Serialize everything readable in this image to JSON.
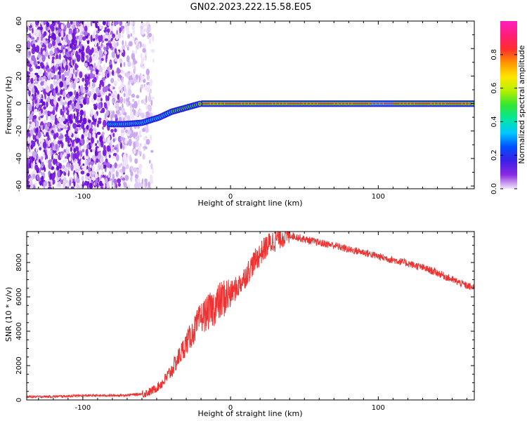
{
  "figure_title": "GN02.2023.222.15.58.E05",
  "chart_data": [
    {
      "type": "heatmap",
      "xlabel": "Height of straight line (km)",
      "ylabel": "Frequency (Hz)",
      "xlim": [
        -138,
        165
      ],
      "ylim": [
        -62,
        60
      ],
      "x_ticks": [
        -100,
        0,
        100
      ],
      "y_ticks": [
        -60,
        -40,
        -20,
        0,
        20,
        40,
        60
      ],
      "colorbar": {
        "label": "Normalized spectral amplitude",
        "range": [
          0,
          1
        ],
        "ticks": [
          "0.0",
          "0.2",
          "0.4",
          "0.6",
          "0.8"
        ],
        "colors": [
          "#f2e6fb",
          "#8a2be2",
          "#3c1ee6",
          "#0050ff",
          "#00c8ff",
          "#00e6a0",
          "#32e632",
          "#b4f000",
          "#ffe600",
          "#ff9600",
          "#ff2d2d",
          "#ff1e78",
          "#ff1ebe"
        ]
      },
      "ridge": {
        "description_points": [
          {
            "x": -82,
            "y": -15
          },
          {
            "x": -72,
            "y": -15
          },
          {
            "x": -60,
            "y": -14
          },
          {
            "x": -48,
            "y": -10
          },
          {
            "x": -40,
            "y": -6
          },
          {
            "x": -30,
            "y": -3
          },
          {
            "x": -20,
            "y": 0
          },
          {
            "x": 0,
            "y": 0
          },
          {
            "x": 100,
            "y": 0
          },
          {
            "x": 165,
            "y": 0
          }
        ]
      }
    },
    {
      "type": "line",
      "xlabel": "Height of straight line (km)",
      "ylabel": "SNR (10 * v/v)",
      "xlim": [
        -138,
        165
      ],
      "ylim": [
        0,
        9800
      ],
      "x_ticks": [
        -100,
        0,
        100
      ],
      "y_ticks": [
        0,
        2000,
        4000,
        6000,
        8000
      ],
      "series": [
        {
          "color": "#ee3333",
          "x": [
            -138,
            -120,
            -100,
            -80,
            -70,
            -60,
            -55,
            -50,
            -45,
            -40,
            -35,
            -30,
            -25,
            -20,
            -15,
            -10,
            -5,
            0,
            5,
            10,
            15,
            20,
            25,
            30,
            35,
            40,
            50,
            60,
            70,
            80,
            90,
            100,
            110,
            120,
            130,
            140,
            150,
            160,
            165
          ],
          "y": [
            180,
            200,
            250,
            260,
            280,
            350,
            450,
            700,
            1100,
            1700,
            2500,
            3300,
            4000,
            4800,
            5100,
            5500,
            5900,
            6200,
            6600,
            7200,
            7900,
            8500,
            9000,
            9300,
            9550,
            9600,
            9350,
            9150,
            9000,
            8750,
            8600,
            8350,
            8150,
            7950,
            7700,
            7400,
            7000,
            6650,
            6500
          ]
        }
      ]
    }
  ]
}
